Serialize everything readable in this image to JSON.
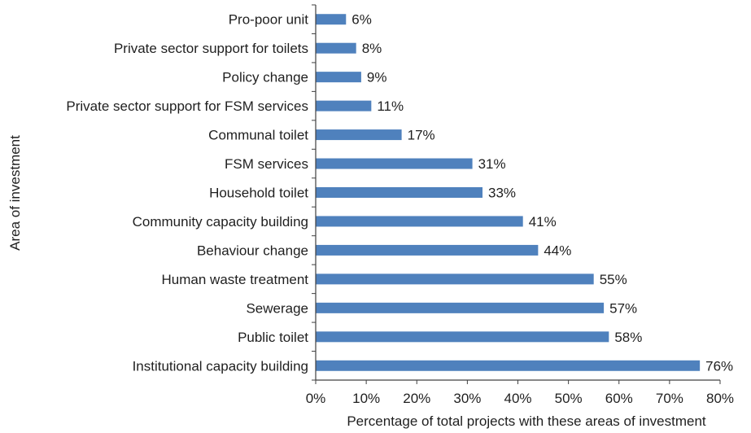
{
  "chart_data": {
    "type": "bar",
    "orientation": "horizontal",
    "categories": [
      "Pro-poor unit",
      "Private sector support for toilets",
      "Policy change",
      "Private sector support for FSM services",
      "Communal toilet",
      "FSM services",
      "Household toilet",
      "Community capacity building",
      "Behaviour change",
      "Human waste treatment",
      "Sewerage",
      "Public toilet",
      "Institutional capacity building"
    ],
    "values": [
      6,
      8,
      9,
      11,
      17,
      31,
      33,
      41,
      44,
      55,
      57,
      58,
      76
    ],
    "value_labels": [
      "6%",
      "8%",
      "9%",
      "11%",
      "17%",
      "31%",
      "33%",
      "41%",
      "44%",
      "55%",
      "57%",
      "58%",
      "76%"
    ],
    "xlim": [
      0,
      80
    ],
    "x_ticks": [
      0,
      10,
      20,
      30,
      40,
      50,
      60,
      70,
      80
    ],
    "x_tick_labels": [
      "0%",
      "10%",
      "20%",
      "30%",
      "40%",
      "50%",
      "60%",
      "70%",
      "80%"
    ],
    "xlabel": "Percentage of total projects with these areas of investment",
    "ylabel": "Area of investment",
    "title": "",
    "grid": false,
    "legend": "none",
    "bar_color": "#4f81bd",
    "axis_color": "#404040",
    "text_color": "#1f1f1f"
  }
}
